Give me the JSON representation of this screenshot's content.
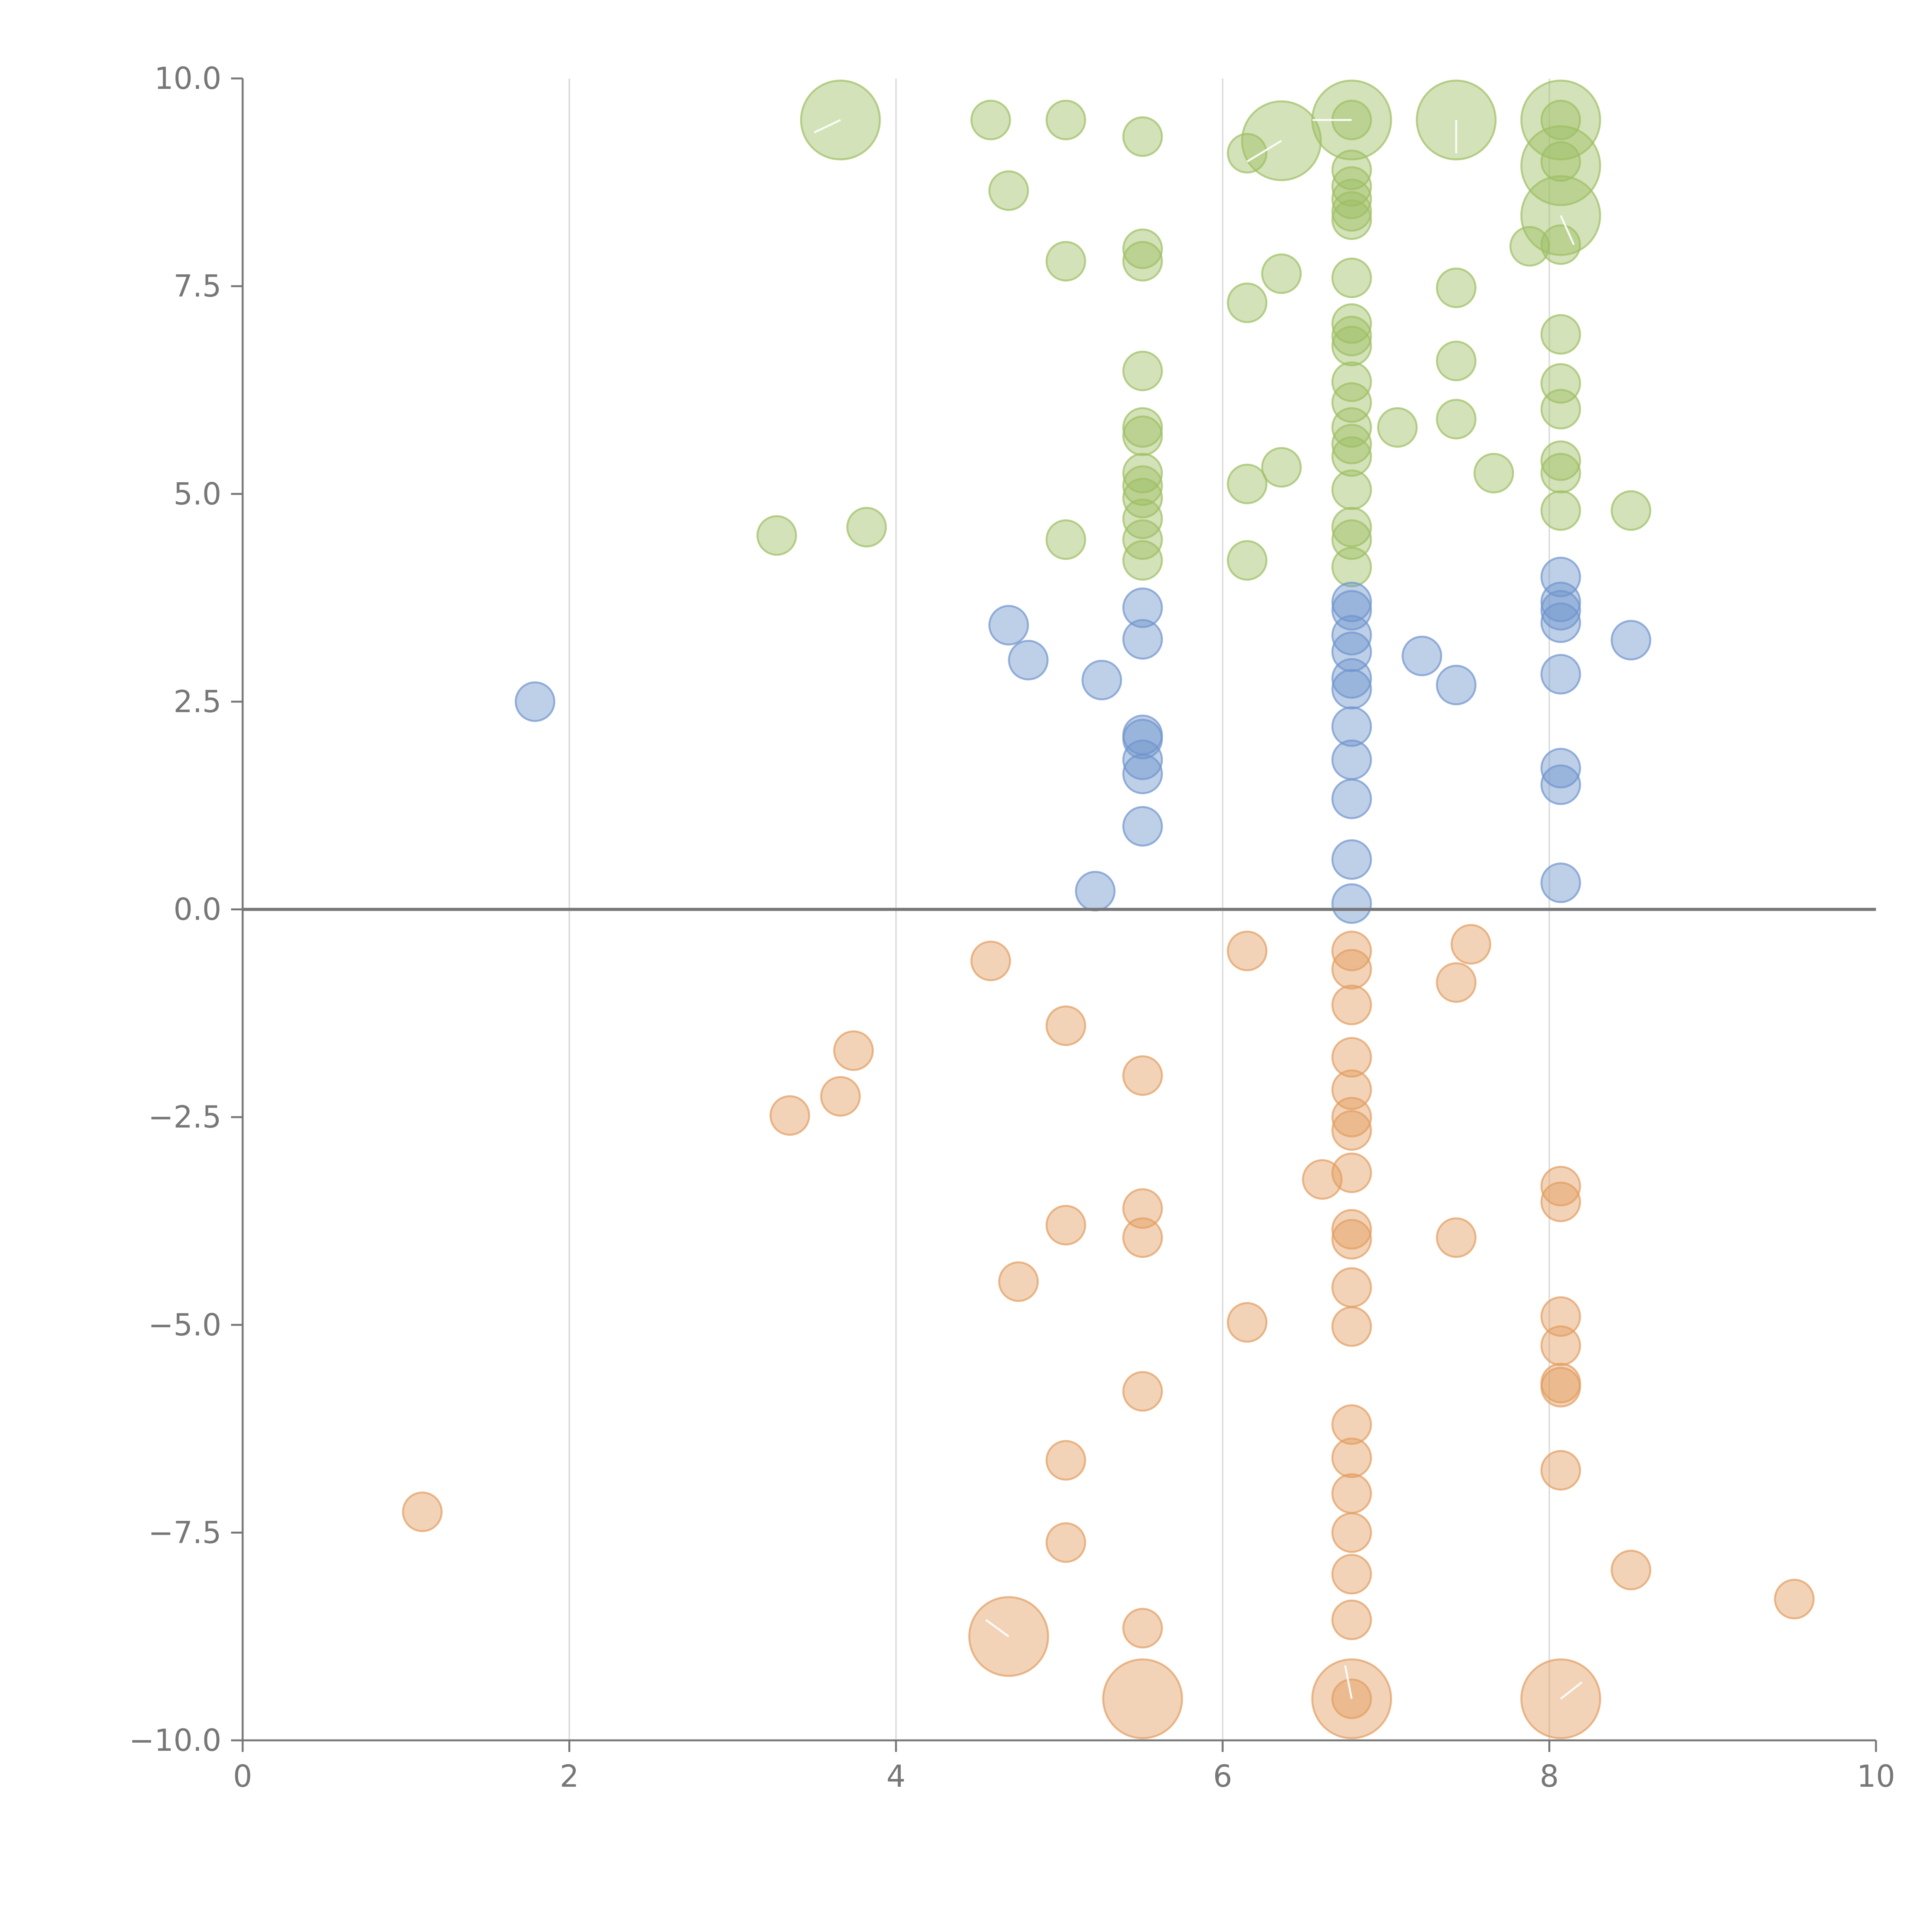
{
  "chart_data": {
    "type": "scatter",
    "title": "",
    "xlabel": "",
    "ylabel": "",
    "xlim": [
      0,
      10
    ],
    "ylim": [
      -10,
      10
    ],
    "x_ticks": [
      "0",
      "2",
      "4",
      "6",
      "8",
      "10"
    ],
    "y_ticks": [
      "−10.0",
      "−7.5",
      "−5.0",
      "−2.5",
      "0.0",
      "2.5",
      "5.0",
      "7.5",
      "10.0"
    ],
    "grid": "vertical lines at x = 2, 4, 6, 8",
    "zero_line": true,
    "legend": "none",
    "series": [
      {
        "color": "#9ebf63",
        "points": [
          [
            3.27,
            4.5
          ],
          [
            3.82,
            4.6
          ],
          [
            4.58,
            9.5
          ],
          [
            4.69,
            8.65
          ],
          [
            5.04,
            9.5
          ],
          [
            5.04,
            7.8
          ],
          [
            5.04,
            4.45
          ],
          [
            5.51,
            9.3
          ],
          [
            5.51,
            7.95
          ],
          [
            5.51,
            7.8
          ],
          [
            5.51,
            6.48
          ],
          [
            5.51,
            5.8
          ],
          [
            5.51,
            5.7
          ],
          [
            5.51,
            5.25
          ],
          [
            5.51,
            5.1
          ],
          [
            5.51,
            4.95
          ],
          [
            5.51,
            4.7
          ],
          [
            5.51,
            4.45
          ],
          [
            5.51,
            4.2
          ],
          [
            6.15,
            9.1
          ],
          [
            6.15,
            7.3
          ],
          [
            6.15,
            5.12
          ],
          [
            6.15,
            4.2
          ],
          [
            6.36,
            7.65
          ],
          [
            6.36,
            5.32
          ],
          [
            6.79,
            9.5
          ],
          [
            6.79,
            8.9
          ],
          [
            6.79,
            8.7
          ],
          [
            6.79,
            8.55
          ],
          [
            6.79,
            8.4
          ],
          [
            6.79,
            8.3
          ],
          [
            6.79,
            7.6
          ],
          [
            6.79,
            7.05
          ],
          [
            6.79,
            6.9
          ],
          [
            6.79,
            6.78
          ],
          [
            6.79,
            6.35
          ],
          [
            6.79,
            6.1
          ],
          [
            6.79,
            5.8
          ],
          [
            6.79,
            5.6
          ],
          [
            6.79,
            5.45
          ],
          [
            6.79,
            5.05
          ],
          [
            6.79,
            4.6
          ],
          [
            6.79,
            4.45
          ],
          [
            6.79,
            4.12
          ],
          [
            7.07,
            5.8
          ],
          [
            7.43,
            7.48
          ],
          [
            7.43,
            6.6
          ],
          [
            7.43,
            5.9
          ],
          [
            7.66,
            5.25
          ],
          [
            7.88,
            7.98
          ],
          [
            8.07,
            9.5
          ],
          [
            8.07,
            9.0
          ],
          [
            8.07,
            8.0
          ],
          [
            8.07,
            6.92
          ],
          [
            8.07,
            6.33
          ],
          [
            8.07,
            6.02
          ],
          [
            8.07,
            5.4
          ],
          [
            8.07,
            5.25
          ],
          [
            8.07,
            4.8
          ],
          [
            8.5,
            4.8
          ]
        ],
        "large_points": [
          [
            3.66,
            9.5
          ],
          [
            6.36,
            9.25
          ],
          [
            6.79,
            9.5
          ],
          [
            7.43,
            9.5
          ],
          [
            8.07,
            9.5
          ],
          [
            8.07,
            8.95
          ],
          [
            8.07,
            8.35
          ]
        ]
      },
      {
        "color": "#6f94cd",
        "points": [
          [
            1.79,
            2.5
          ],
          [
            4.69,
            3.42
          ],
          [
            4.81,
            3.0
          ],
          [
            5.22,
            0.22
          ],
          [
            5.26,
            2.76
          ],
          [
            5.51,
            3.63
          ],
          [
            5.51,
            3.25
          ],
          [
            5.51,
            2.1
          ],
          [
            5.51,
            2.05
          ],
          [
            5.51,
            1.8
          ],
          [
            5.51,
            1.63
          ],
          [
            5.51,
            1.0
          ],
          [
            6.79,
            3.7
          ],
          [
            6.79,
            3.6
          ],
          [
            6.79,
            3.3
          ],
          [
            6.79,
            3.1
          ],
          [
            6.79,
            2.78
          ],
          [
            6.79,
            2.65
          ],
          [
            6.79,
            2.2
          ],
          [
            6.79,
            1.8
          ],
          [
            6.79,
            1.33
          ],
          [
            6.79,
            0.6
          ],
          [
            6.79,
            0.07
          ],
          [
            7.22,
            3.05
          ],
          [
            7.43,
            2.7
          ],
          [
            8.07,
            4.0
          ],
          [
            8.07,
            3.7
          ],
          [
            8.07,
            3.6
          ],
          [
            8.07,
            3.45
          ],
          [
            8.07,
            2.83
          ],
          [
            8.07,
            1.7
          ],
          [
            8.07,
            1.5
          ],
          [
            8.07,
            0.32
          ],
          [
            8.5,
            3.24
          ]
        ],
        "large_points": []
      },
      {
        "color": "#e39d5f",
        "points": [
          [
            1.1,
            -7.25
          ],
          [
            3.35,
            -2.48
          ],
          [
            3.66,
            -2.25
          ],
          [
            3.74,
            -1.7
          ],
          [
            4.58,
            -0.62
          ],
          [
            4.75,
            -4.48
          ],
          [
            5.04,
            -1.4
          ],
          [
            5.04,
            -3.8
          ],
          [
            5.04,
            -6.63
          ],
          [
            5.04,
            -7.62
          ],
          [
            5.51,
            -2.0
          ],
          [
            5.51,
            -3.6
          ],
          [
            5.51,
            -3.95
          ],
          [
            5.51,
            -5.8
          ],
          [
            5.51,
            -8.65
          ],
          [
            6.15,
            -0.5
          ],
          [
            6.15,
            -4.97
          ],
          [
            6.61,
            -3.25
          ],
          [
            6.79,
            -0.5
          ],
          [
            6.79,
            -0.72
          ],
          [
            6.79,
            -1.15
          ],
          [
            6.79,
            -1.78
          ],
          [
            6.79,
            -2.17
          ],
          [
            6.79,
            -2.5
          ],
          [
            6.79,
            -2.66
          ],
          [
            6.79,
            -3.17
          ],
          [
            6.79,
            -3.85
          ],
          [
            6.79,
            -3.97
          ],
          [
            6.79,
            -4.55
          ],
          [
            6.79,
            -5.02
          ],
          [
            6.79,
            -6.2
          ],
          [
            6.79,
            -6.6
          ],
          [
            6.79,
            -7.03
          ],
          [
            6.79,
            -7.5
          ],
          [
            6.79,
            -8.0
          ],
          [
            6.79,
            -8.55
          ],
          [
            6.79,
            -9.5
          ],
          [
            7.43,
            -0.88
          ],
          [
            7.43,
            -3.95
          ],
          [
            7.52,
            -0.42
          ],
          [
            8.07,
            -3.33
          ],
          [
            8.07,
            -3.52
          ],
          [
            8.07,
            -4.9
          ],
          [
            8.07,
            -5.25
          ],
          [
            8.07,
            -5.7
          ],
          [
            8.07,
            -5.75
          ],
          [
            8.07,
            -6.75
          ],
          [
            8.5,
            -7.95
          ],
          [
            9.5,
            -8.3
          ]
        ],
        "large_points": [
          [
            4.69,
            -8.75
          ],
          [
            5.51,
            -9.5
          ],
          [
            6.79,
            -9.5
          ],
          [
            8.07,
            -9.5
          ]
        ]
      }
    ]
  }
}
